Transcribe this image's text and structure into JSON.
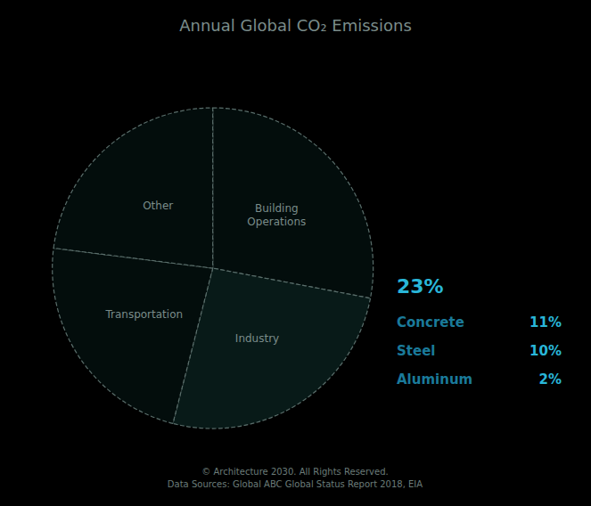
{
  "chart_data": {
    "type": "pie",
    "title": "Annual Global CO₂ Emissions",
    "categories": [
      "Building\nOperations",
      "Industry",
      "Transportation",
      "Other"
    ],
    "values": [
      28,
      26,
      23,
      23
    ],
    "colors": [
      "#030d0c",
      "#081a18",
      "#030d0c",
      "#030d0c"
    ],
    "annotations": [
      {
        "text": "23%",
        "color": "#29b6d8"
      },
      {
        "text": "Concrete",
        "color": "#1a7a9a"
      },
      {
        "text": "11%",
        "color": "#29b6d8"
      },
      {
        "text": "Steel",
        "color": "#1a7a9a"
      },
      {
        "text": "10%",
        "color": "#29b6d8"
      },
      {
        "text": "Aluminum",
        "color": "#1a7a9a"
      },
      {
        "text": "2%",
        "color": "#29b6d8"
      }
    ],
    "subtitle": "© Architecture 2030. All Rights Reserved.\nData Sources: Global ABC Global Status Report 2018, EIA"
  }
}
